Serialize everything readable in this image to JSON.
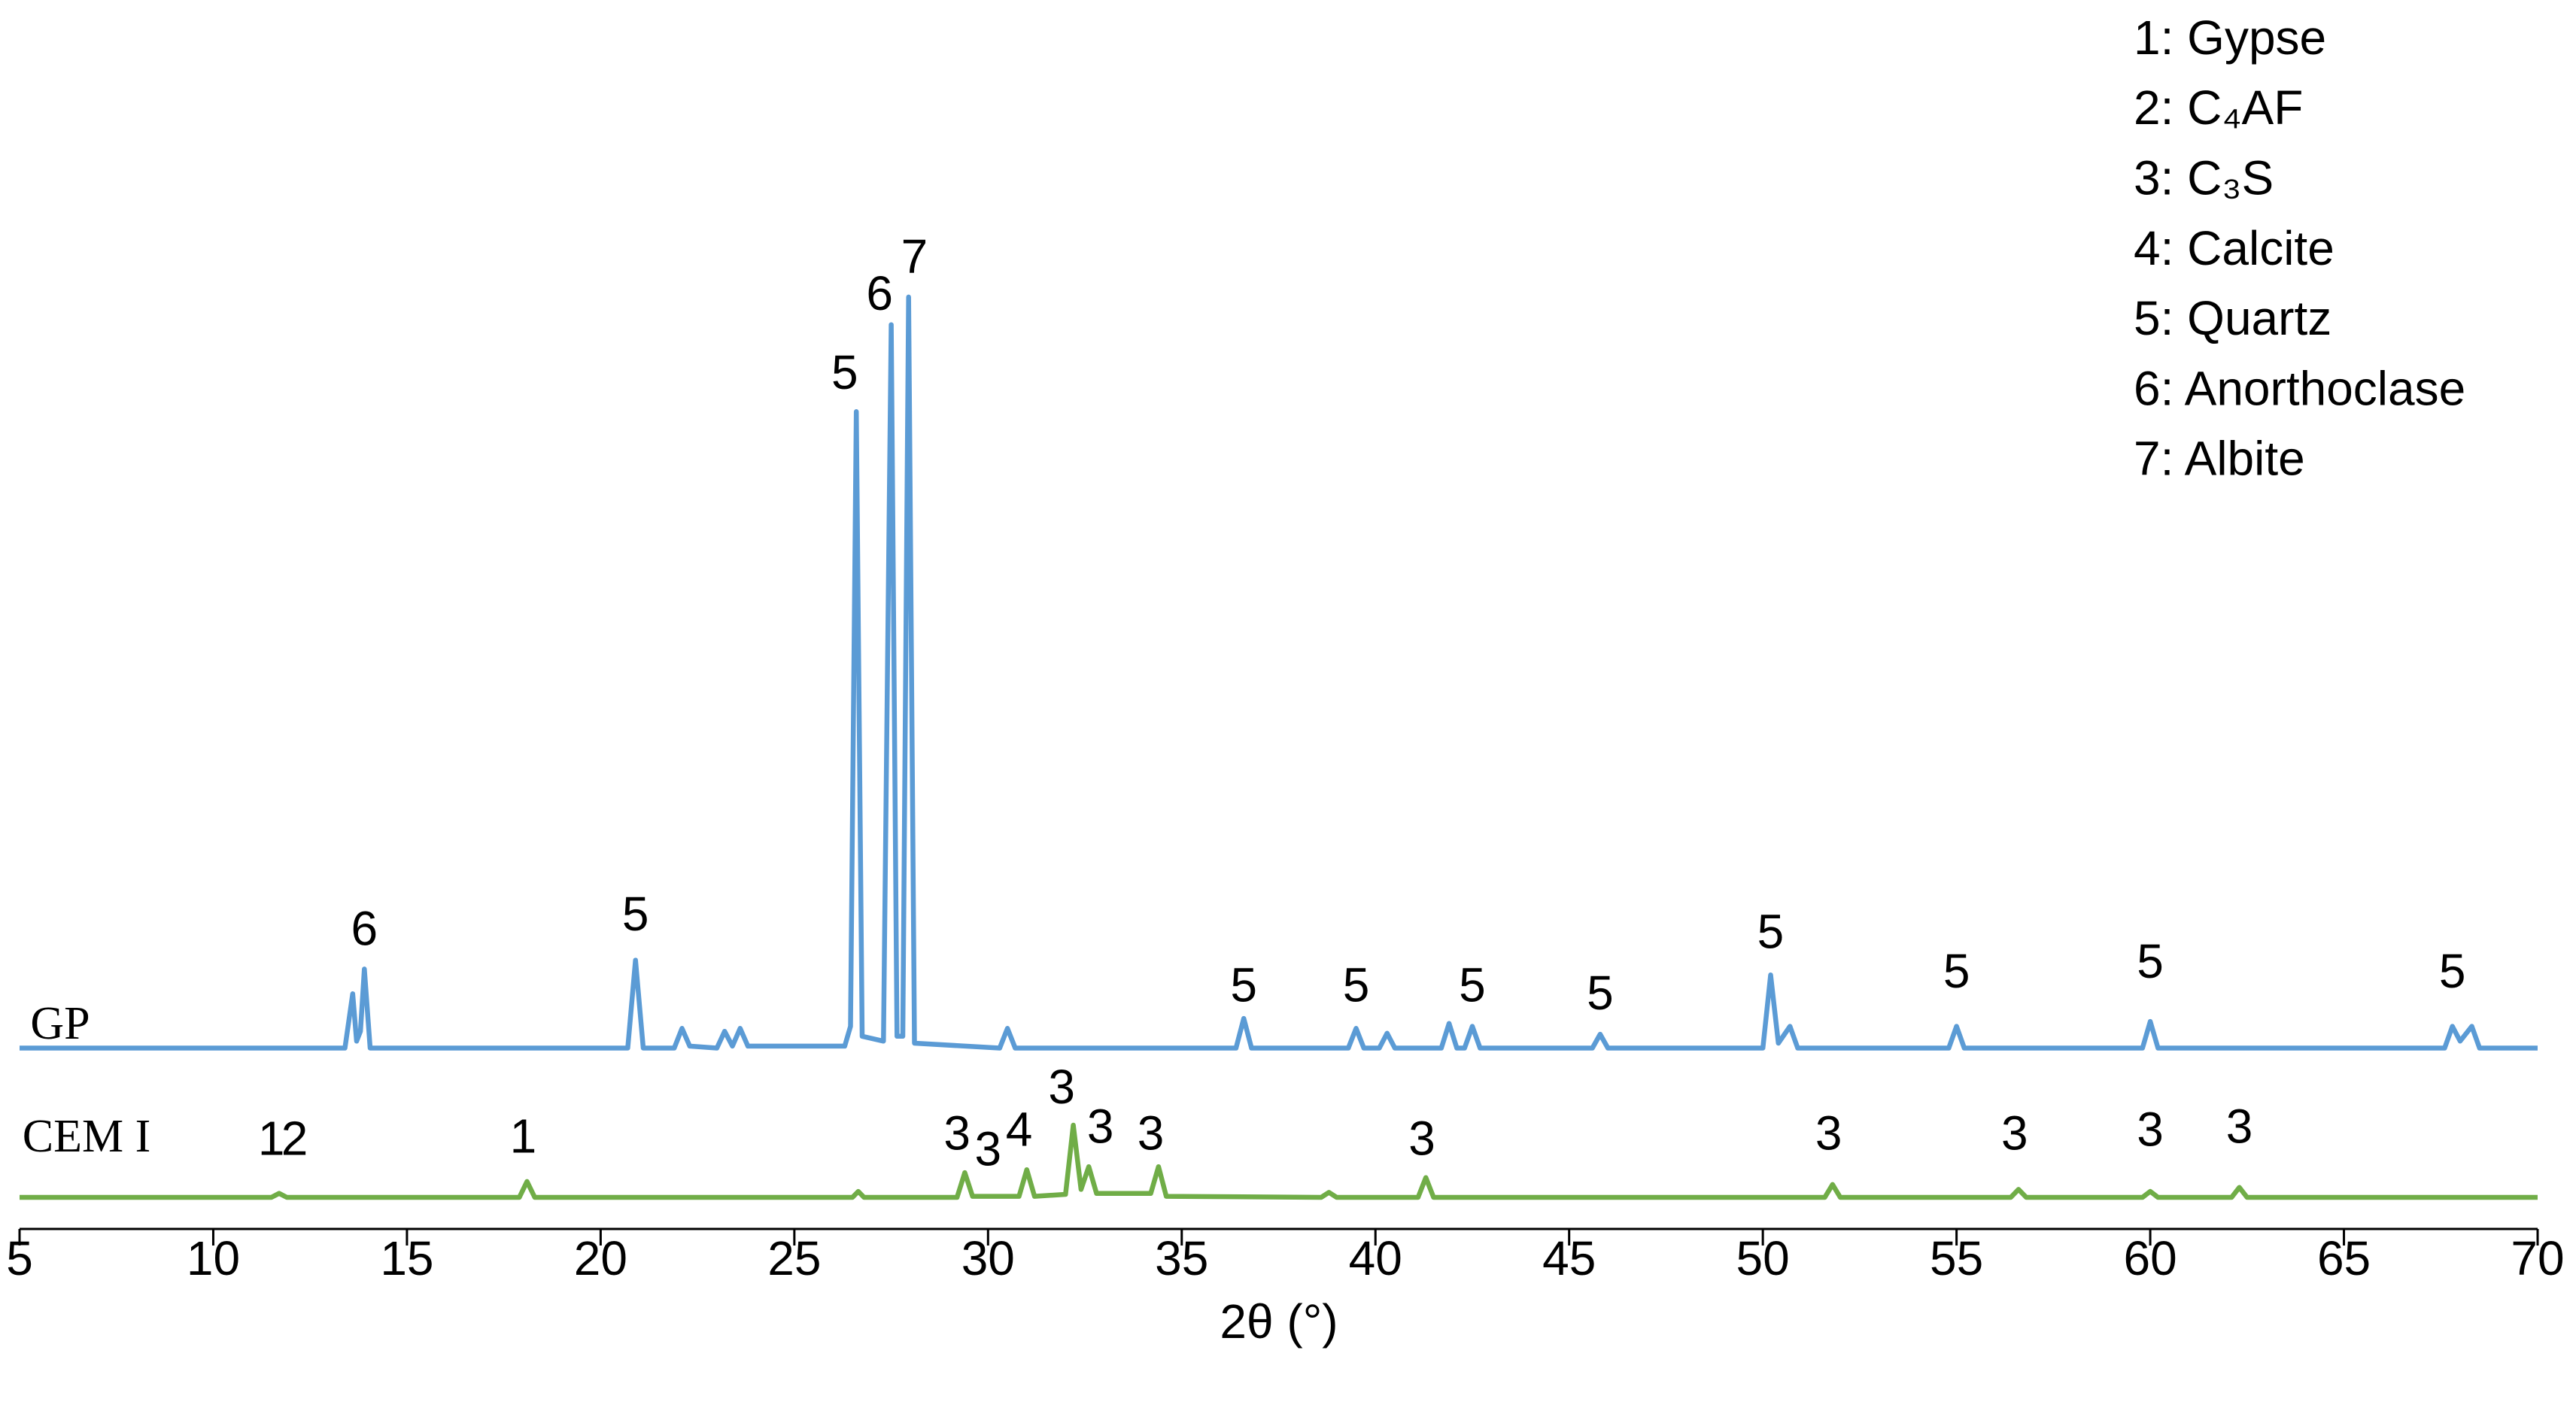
{
  "chart_data": {
    "type": "line",
    "x_label": "2θ (°)",
    "xlim": [
      5,
      70
    ],
    "xticks": [
      5,
      10,
      15,
      20,
      25,
      30,
      35,
      40,
      45,
      50,
      55,
      60,
      65,
      70
    ],
    "ylim": [
      0,
      100
    ],
    "series": [
      {
        "name": "GP",
        "color": "#5b9bd5",
        "x": [
          5,
          13.4,
          13.6,
          13.7,
          13.8,
          13.9,
          14.05,
          20.7,
          20.9,
          21.1,
          21.9,
          22.1,
          22.3,
          23.0,
          23.2,
          23.4,
          23.6,
          23.8,
          26.3,
          26.45,
          26.6,
          26.75,
          27.3,
          27.5,
          27.65,
          27.8,
          27.95,
          28.1,
          30.3,
          30.5,
          30.7,
          36.4,
          36.6,
          36.8,
          39.3,
          39.5,
          39.7,
          40.1,
          40.3,
          40.5,
          41.7,
          41.9,
          42.1,
          42.3,
          42.5,
          42.7,
          45.6,
          45.8,
          46.0,
          50.0,
          50.2,
          50.4,
          50.7,
          50.9,
          54.8,
          55.0,
          55.2,
          59.8,
          60.0,
          60.2,
          67.6,
          67.8,
          68.0,
          68.3,
          68.5,
          70
        ],
        "values": [
          18.3,
          18.3,
          23.8,
          19,
          20,
          26.3,
          18.3,
          18.3,
          27.2,
          18.3,
          18.3,
          20.3,
          18.5,
          18.3,
          20,
          18.5,
          20.3,
          18.5,
          18.5,
          20.5,
          82.7,
          19.5,
          19,
          91.5,
          19.5,
          19.5,
          94.3,
          18.8,
          18.3,
          20.3,
          18.3,
          18.3,
          21.3,
          18.3,
          18.3,
          20.3,
          18.3,
          18.3,
          19.8,
          18.3,
          18.3,
          20.8,
          18.3,
          18.3,
          20.5,
          18.3,
          18.3,
          19.7,
          18.3,
          18.3,
          25.7,
          18.8,
          20.5,
          18.3,
          18.3,
          20.5,
          18.3,
          18.3,
          21,
          18.3,
          18.3,
          20.5,
          19,
          20.5,
          18.3,
          18.3
        ]
      },
      {
        "name": "CEM I",
        "color": "#70ad47",
        "x": [
          5,
          11.5,
          11.7,
          11.9,
          17.9,
          18.1,
          18.3,
          26.5,
          26.65,
          26.8,
          29.2,
          29.4,
          29.6,
          30.8,
          31.0,
          31.2,
          32.0,
          32.2,
          32.4,
          32.6,
          32.8,
          34.2,
          34.4,
          34.6,
          38.6,
          38.8,
          39.0,
          41.1,
          41.3,
          41.5,
          51.6,
          51.8,
          52.0,
          56.4,
          56.6,
          56.8,
          59.8,
          60.0,
          60.2,
          62.1,
          62.3,
          62.5,
          70
        ],
        "values": [
          3.2,
          3.2,
          3.6,
          3.2,
          3.2,
          4.8,
          3.2,
          3.2,
          3.8,
          3.2,
          3.2,
          5.7,
          3.3,
          3.3,
          6,
          3.3,
          3.5,
          10.5,
          4,
          6.3,
          3.6,
          3.6,
          6.3,
          3.3,
          3.2,
          3.7,
          3.2,
          3.2,
          5.2,
          3.2,
          3.2,
          4.5,
          3.2,
          3.2,
          4,
          3.2,
          3.2,
          3.8,
          3.2,
          3.2,
          4.2,
          3.2,
          3.2
        ]
      }
    ],
    "annotations": [
      {
        "text": "6",
        "x": 13.9,
        "y": 30
      },
      {
        "text": "5",
        "x": 20.9,
        "y": 31.5
      },
      {
        "text": "5",
        "x": 26.3,
        "y": 86.3
      },
      {
        "text": "6",
        "x": 27.2,
        "y": 94.3
      },
      {
        "text": "7",
        "x": 28.1,
        "y": 98
      },
      {
        "text": "5",
        "x": 36.6,
        "y": 24.3
      },
      {
        "text": "5",
        "x": 39.5,
        "y": 24.3
      },
      {
        "text": "5",
        "x": 42.5,
        "y": 24.3
      },
      {
        "text": "5",
        "x": 45.8,
        "y": 23.5
      },
      {
        "text": "5",
        "x": 50.2,
        "y": 29.7
      },
      {
        "text": "5",
        "x": 55.0,
        "y": 25.7
      },
      {
        "text": "5",
        "x": 60.0,
        "y": 26.7
      },
      {
        "text": "5",
        "x": 67.8,
        "y": 25.7
      },
      {
        "text": "1",
        "x": 11.5,
        "y": 8.8
      },
      {
        "text": "2",
        "x": 12.1,
        "y": 8.8
      },
      {
        "text": "1",
        "x": 18,
        "y": 9
      },
      {
        "text": "3",
        "x": 29.2,
        "y": 9.3
      },
      {
        "text": "3",
        "x": 30,
        "y": 7.7
      },
      {
        "text": "4",
        "x": 30.8,
        "y": 9.7
      },
      {
        "text": "3",
        "x": 31.9,
        "y": 14
      },
      {
        "text": "3",
        "x": 32.9,
        "y": 10
      },
      {
        "text": "3",
        "x": 34.2,
        "y": 9.3
      },
      {
        "text": "3",
        "x": 41.2,
        "y": 8.8
      },
      {
        "text": "3",
        "x": 51.7,
        "y": 9.3
      },
      {
        "text": "3",
        "x": 56.5,
        "y": 9.3
      },
      {
        "text": "3",
        "x": 60,
        "y": 9.7
      },
      {
        "text": "3",
        "x": 62.3,
        "y": 10
      }
    ],
    "key": [
      "1: Gypse",
      "2: C₄AF",
      "3: C₃S",
      "4: Calcite",
      "5: Quartz",
      "6: Anorthoclase",
      "7: Albite"
    ]
  }
}
